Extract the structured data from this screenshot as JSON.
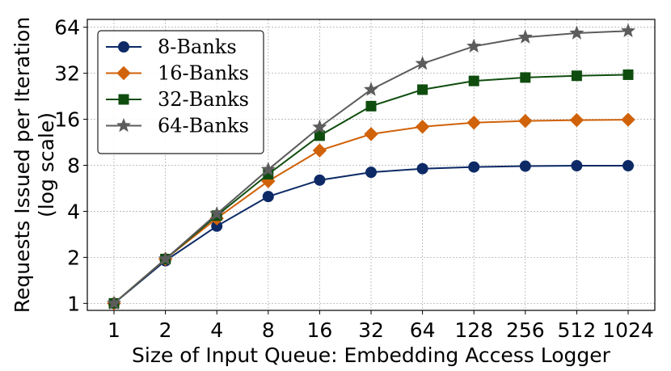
{
  "chart_data": {
    "type": "line",
    "xlabel": "Size of Input Queue: Embedding Access Logger",
    "ylabel": [
      "Requests Issued per Iteration",
      "(log scale)"
    ],
    "x_scale": "log2",
    "y_scale": "log2",
    "x": [
      1,
      2,
      4,
      8,
      16,
      32,
      64,
      128,
      256,
      512,
      1024
    ],
    "x_tick_labels": [
      "1",
      "2",
      "4",
      "8",
      "16",
      "32",
      "64",
      "128",
      "256",
      "512",
      "1024"
    ],
    "y_ticks": [
      1,
      2,
      4,
      8,
      16,
      32,
      64
    ],
    "y_tick_labels": [
      "1",
      "2",
      "4",
      "8",
      "16",
      "32",
      "64"
    ],
    "ylim": [
      0.9,
      72
    ],
    "grid": true,
    "legend_position": "top-left",
    "series": [
      {
        "name": "8-Banks",
        "color": "#0d2a66",
        "marker": "circle",
        "values": [
          1.0,
          1.9,
          3.2,
          5.0,
          6.4,
          7.2,
          7.6,
          7.8,
          7.9,
          7.95,
          7.95
        ]
      },
      {
        "name": "16-Banks",
        "color": "#d0620a",
        "marker": "diamond",
        "values": [
          1.0,
          1.95,
          3.6,
          6.3,
          10.0,
          12.8,
          14.3,
          15.2,
          15.6,
          15.8,
          15.9
        ]
      },
      {
        "name": "32-Banks",
        "color": "#0f4d0f",
        "marker": "square",
        "values": [
          1.0,
          1.95,
          3.75,
          7.0,
          12.5,
          19.5,
          25.0,
          28.5,
          30.0,
          30.8,
          31.3
        ]
      },
      {
        "name": "64-Banks",
        "color": "#5c5c5c",
        "marker": "star",
        "values": [
          1.0,
          1.95,
          3.85,
          7.5,
          14.2,
          25.0,
          37.0,
          48.0,
          55.0,
          58.5,
          60.5
        ]
      }
    ]
  }
}
